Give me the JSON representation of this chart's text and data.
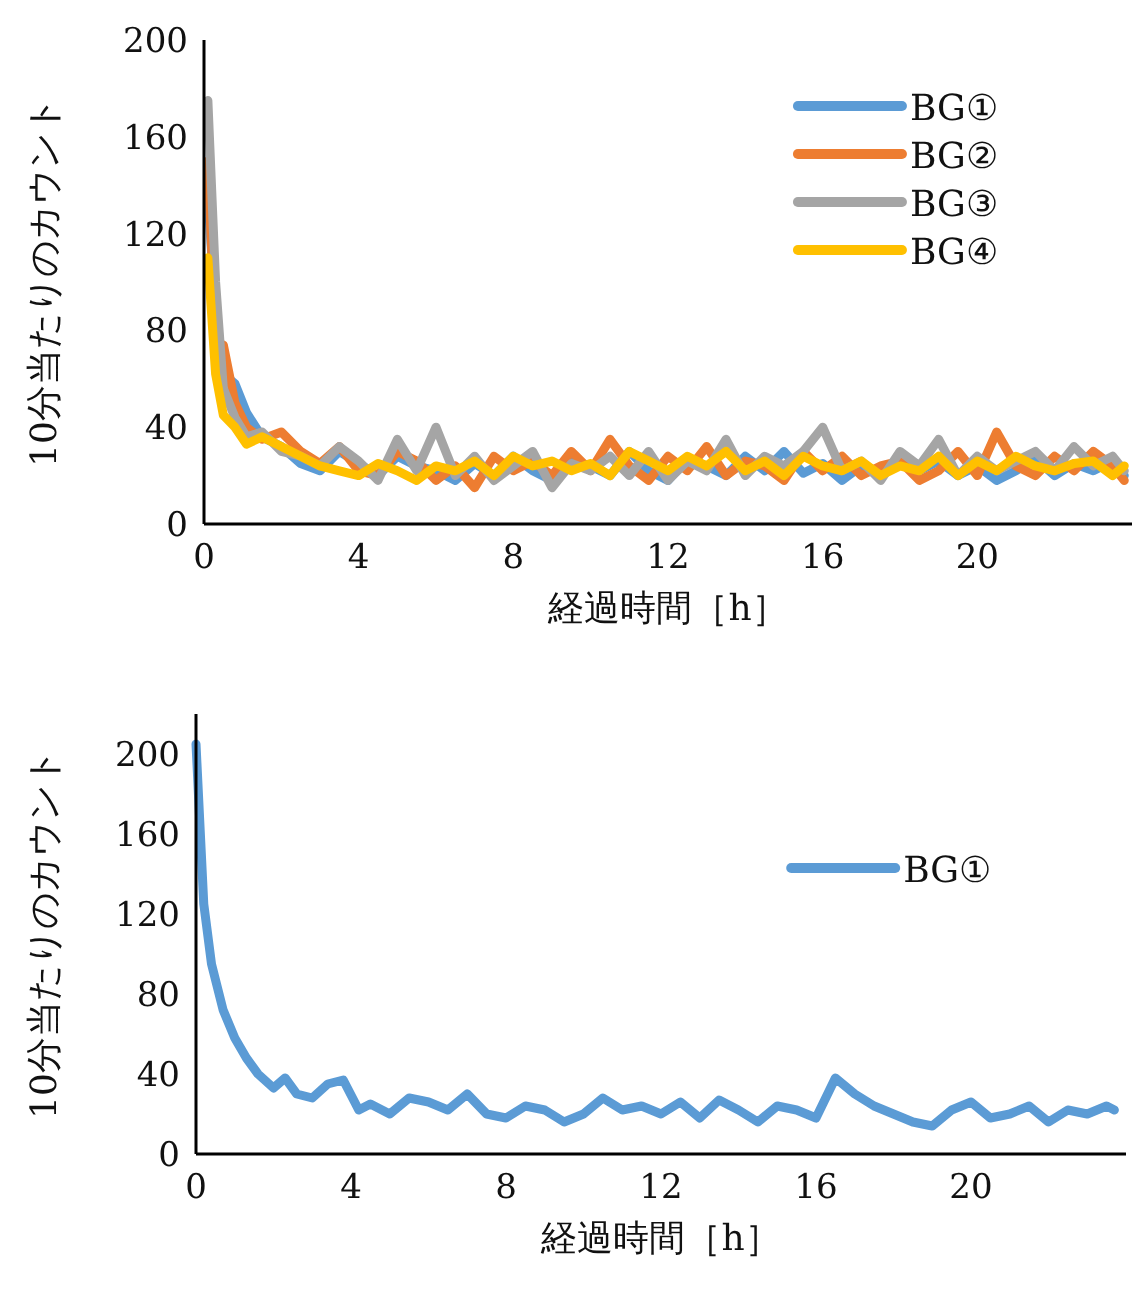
{
  "chart_data": [
    {
      "type": "line",
      "xlabel": "経過時間［h］",
      "ylabel": "10分当たりのカウント",
      "xlim": [
        0,
        24
      ],
      "ylim": [
        0,
        200
      ],
      "xticks": [
        0,
        4,
        8,
        12,
        16,
        20
      ],
      "yticks": [
        0,
        40,
        80,
        120,
        160,
        200
      ],
      "legend": "top right",
      "x": [
        0.1,
        0.3,
        0.5,
        0.8,
        1.1,
        1.5,
        2,
        2.5,
        3,
        3.5,
        4,
        4.5,
        5,
        5.5,
        6,
        6.5,
        7,
        7.5,
        8,
        8.5,
        9,
        9.5,
        10,
        10.5,
        11,
        11.5,
        12,
        12.5,
        13,
        13.5,
        14,
        14.5,
        15,
        15.5,
        16,
        16.5,
        17,
        17.5,
        18,
        18.5,
        19,
        19.5,
        20,
        20.5,
        21,
        21.5,
        22,
        22.5,
        23,
        23.5,
        23.8
      ],
      "series": [
        {
          "name": "BG①",
          "color": "#5b9bd5",
          "values": [
            135,
            88,
            62,
            58,
            46,
            36,
            32,
            25,
            22,
            30,
            25,
            20,
            28,
            24,
            22,
            18,
            25,
            20,
            28,
            22,
            18,
            26,
            24,
            20,
            30,
            22,
            18,
            27,
            24,
            20,
            28,
            22,
            30,
            21,
            25,
            18,
            24,
            20,
            28,
            22,
            26,
            20,
            24,
            18,
            22,
            27,
            20,
            25,
            22,
            26,
            20
          ]
        },
        {
          "name": "BG②",
          "color": "#ed7d31",
          "values": [
            150,
            75,
            74,
            50,
            40,
            35,
            38,
            30,
            25,
            32,
            22,
            20,
            30,
            26,
            18,
            24,
            15,
            28,
            22,
            26,
            20,
            30,
            22,
            35,
            24,
            18,
            28,
            22,
            32,
            20,
            26,
            24,
            18,
            30,
            22,
            28,
            20,
            24,
            26,
            18,
            22,
            30,
            20,
            38,
            24,
            20,
            28,
            22,
            30,
            24,
            18
          ]
        },
        {
          "name": "BG③",
          "color": "#a5a5a5",
          "values": [
            175,
            100,
            56,
            44,
            36,
            38,
            30,
            28,
            24,
            32,
            26,
            18,
            35,
            22,
            40,
            20,
            28,
            18,
            24,
            30,
            15,
            25,
            22,
            28,
            20,
            30,
            18,
            26,
            22,
            35,
            20,
            28,
            24,
            30,
            40,
            22,
            26,
            18,
            30,
            24,
            35,
            20,
            28,
            22,
            26,
            30,
            22,
            32,
            24,
            28,
            22
          ]
        },
        {
          "name": "BG④",
          "color": "#ffc000",
          "values": [
            110,
            62,
            45,
            40,
            33,
            36,
            32,
            28,
            24,
            22,
            20,
            25,
            22,
            18,
            24,
            22,
            26,
            20,
            28,
            24,
            26,
            22,
            25,
            20,
            30,
            26,
            22,
            28,
            24,
            30,
            22,
            26,
            20,
            28,
            24,
            22,
            26,
            20,
            24,
            22,
            28,
            20,
            26,
            22,
            28,
            24,
            22,
            25,
            26,
            20,
            24
          ]
        }
      ]
    },
    {
      "type": "line",
      "xlabel": "経過時間［h］",
      "ylabel": "10分当たりのカウント",
      "xlim": [
        0,
        24
      ],
      "ylim": [
        0,
        220
      ],
      "xticks": [
        0,
        4,
        8,
        12,
        16,
        20
      ],
      "yticks": [
        0,
        40,
        80,
        120,
        160,
        200
      ],
      "legend": "top right",
      "x": [
        0,
        0.2,
        0.4,
        0.7,
        1,
        1.3,
        1.6,
        2,
        2.3,
        2.6,
        3,
        3.4,
        3.8,
        4.2,
        4.5,
        5,
        5.5,
        6,
        6.5,
        7,
        7.5,
        8,
        8.5,
        9,
        9.5,
        10,
        10.5,
        11,
        11.5,
        12,
        12.5,
        13,
        13.5,
        14,
        14.5,
        15,
        15.5,
        16,
        16.5,
        17,
        17.5,
        18,
        18.5,
        19,
        19.5,
        20,
        20.5,
        21,
        21.5,
        22,
        22.5,
        23,
        23.5,
        23.7
      ],
      "series": [
        {
          "name": "BG①",
          "color": "#5b9bd5",
          "values": [
            205,
            125,
            95,
            72,
            58,
            48,
            40,
            33,
            38,
            30,
            28,
            35,
            37,
            22,
            25,
            20,
            28,
            26,
            22,
            30,
            20,
            18,
            24,
            22,
            16,
            20,
            28,
            22,
            24,
            20,
            26,
            18,
            27,
            22,
            16,
            24,
            22,
            18,
            38,
            30,
            24,
            20,
            16,
            14,
            22,
            26,
            18,
            20,
            24,
            16,
            22,
            20,
            24,
            22
          ]
        }
      ]
    }
  ]
}
